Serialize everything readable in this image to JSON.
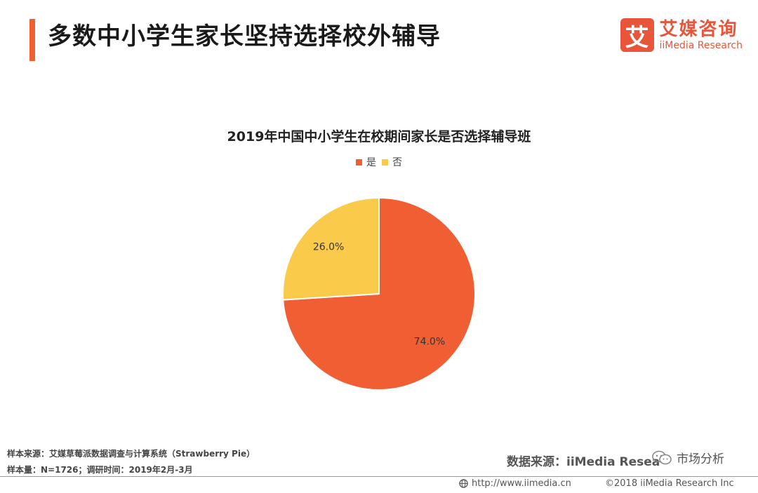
{
  "header": {
    "title": "多数中小学生家长坚持选择校外辅导"
  },
  "brand": {
    "mark": "艾",
    "name_cn": "艾媒咨询",
    "name_en": "iiMedia Research"
  },
  "chart_data": {
    "type": "pie",
    "title": "2019年中国中小学生在校期间家长是否选择辅导班",
    "legend_position": "top",
    "slices": [
      {
        "label": "是",
        "value": 74.0,
        "display": "74.0%",
        "color": "#F05F33"
      },
      {
        "label": "否",
        "value": 26.0,
        "display": "26.0%",
        "color": "#FACB4A"
      }
    ]
  },
  "notes": {
    "sample_source": "样本来源：艾媒草莓派数据调查与计算系统（Strawberry Pie）",
    "sample_size": "样本量：N=1726；调研时间：2019年2月-3月"
  },
  "source": {
    "text": "数据来源：iiMedia Resea"
  },
  "watermark": {
    "text": "市场分析",
    "icon": "wechat-icon"
  },
  "footer": {
    "url": "http://www.iimedia.cn",
    "copyright": "©2018 iiMedia Research Inc",
    "icon": "globe-icon"
  }
}
